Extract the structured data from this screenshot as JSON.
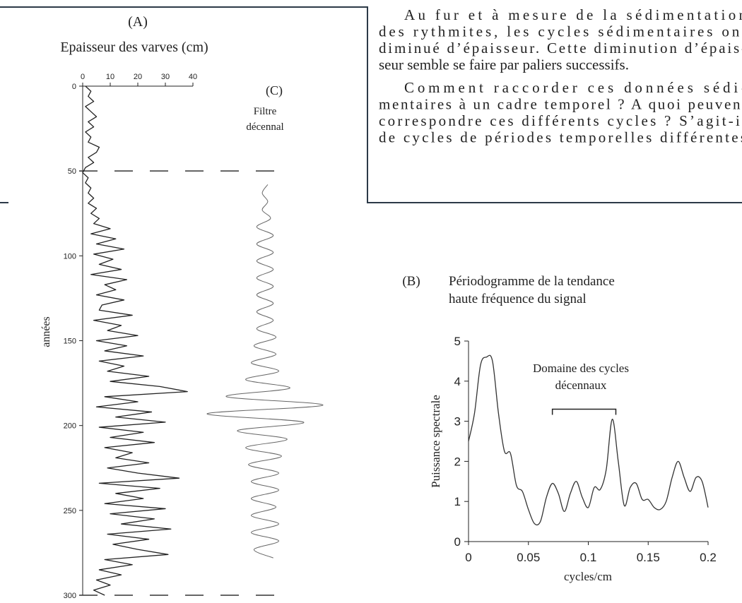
{
  "text": {
    "paragraphs": [
      [
        "Au fur et à mesure de la sédimentation",
        "des rythmites, les cycles sédimentaires ont",
        "diminué d’épaisseur. Cette diminution d’épais-",
        "seur semble se faire par paliers successifs."
      ],
      [
        "Comment raccorder ces données sédi-",
        "mentaires à un cadre temporel ? A quoi peuvent",
        "correspondre ces différents cycles ? S’agit-il",
        "de cycles de périodes temporelles différentes"
      ]
    ]
  },
  "chart_data": [
    {
      "type": "line",
      "orientation": "vertical",
      "title": "(A)",
      "subtitle": "Epaisseur des varves (cm)",
      "xlabel": "années",
      "xlim": [
        0,
        300
      ],
      "xticks": [
        0,
        50,
        100,
        150,
        200,
        250,
        300
      ],
      "ylim": [
        0,
        40
      ],
      "yticks": [
        0,
        10,
        20,
        30,
        40
      ],
      "reference_x": [
        50,
        300
      ],
      "color": "#222222",
      "x": [
        0,
        3,
        6,
        9,
        12,
        15,
        18,
        21,
        24,
        27,
        30,
        33,
        36,
        39,
        42,
        45,
        48,
        51,
        54,
        57,
        60,
        63,
        66,
        69,
        72,
        75,
        78,
        81,
        84,
        87,
        90,
        93,
        96,
        99,
        102,
        105,
        108,
        111,
        114,
        117,
        120,
        123,
        126,
        129,
        132,
        135,
        138,
        141,
        144,
        147,
        150,
        153,
        156,
        159,
        162,
        165,
        168,
        171,
        174,
        177,
        180,
        183,
        186,
        189,
        192,
        195,
        198,
        201,
        204,
        207,
        210,
        213,
        216,
        219,
        222,
        225,
        228,
        231,
        234,
        237,
        240,
        243,
        246,
        249,
        252,
        255,
        258,
        261,
        264,
        267,
        270,
        273,
        276,
        279,
        282,
        285,
        288,
        291,
        294,
        297,
        300
      ],
      "values": [
        1,
        3,
        2,
        4,
        1,
        3,
        5,
        2,
        4,
        1,
        3,
        2,
        6,
        5,
        2,
        4,
        1,
        0,
        2,
        1,
        3,
        2,
        4,
        2,
        5,
        3,
        6,
        4,
        10,
        3,
        12,
        5,
        15,
        4,
        11,
        6,
        14,
        3,
        16,
        8,
        12,
        5,
        15,
        7,
        6,
        18,
        4,
        14,
        9,
        20,
        5,
        16,
        8,
        22,
        6,
        15,
        9,
        24,
        10,
        28,
        38,
        8,
        20,
        5,
        25,
        12,
        30,
        6,
        22,
        10,
        26,
        8,
        18,
        12,
        24,
        9,
        20,
        35,
        6,
        28,
        12,
        22,
        8,
        30,
        10,
        26,
        14,
        32,
        9,
        24,
        11,
        20,
        31,
        8,
        18,
        6,
        14,
        5,
        10,
        4,
        8
      ]
    },
    {
      "type": "line",
      "orientation": "vertical",
      "title": "(C)",
      "subtitle": [
        "Filtre",
        "décennal"
      ],
      "color": "#666666",
      "x": [
        58,
        63,
        68,
        73,
        78,
        83,
        88,
        93,
        98,
        103,
        108,
        113,
        118,
        123,
        128,
        133,
        138,
        143,
        148,
        153,
        158,
        163,
        168,
        173,
        178,
        183,
        188,
        193,
        198,
        203,
        208,
        213,
        218,
        223,
        228,
        233,
        238,
        243,
        248,
        253,
        258,
        263,
        268,
        273,
        278
      ],
      "values": [
        1,
        -1,
        1,
        -1,
        2,
        -3,
        3,
        -3,
        3,
        -3,
        3,
        -3,
        3,
        -3,
        3,
        -3,
        3,
        -3,
        4,
        -4,
        4,
        -5,
        5,
        -7,
        9,
        -14,
        21,
        -21,
        14,
        -10,
        8,
        -7,
        6,
        -6,
        5,
        -5,
        5,
        -5,
        4,
        -5,
        5,
        -5,
        5,
        -4,
        3
      ]
    },
    {
      "type": "line",
      "label": "(B)",
      "title": [
        "Périodogramme de la tendance",
        "haute fréquence du signal"
      ],
      "xlabel": "cycles/cm",
      "ylabel": "Puissance spectrale",
      "color": "#333333",
      "xlim": [
        0,
        0.2
      ],
      "xticks": [
        0,
        0.05,
        0.1,
        0.15,
        0.2
      ],
      "ylim": [
        0,
        5
      ],
      "yticks": [
        0,
        1,
        2,
        3,
        4,
        5
      ],
      "annotation": {
        "text": [
          "Domaine des cycles",
          "décennaux"
        ],
        "x_range": [
          0.07,
          0.123
        ],
        "y": 3.3
      },
      "x": [
        0,
        0.005,
        0.01,
        0.015,
        0.02,
        0.025,
        0.03,
        0.035,
        0.04,
        0.045,
        0.05,
        0.055,
        0.06,
        0.065,
        0.07,
        0.075,
        0.08,
        0.085,
        0.09,
        0.095,
        0.1,
        0.105,
        0.11,
        0.115,
        0.12,
        0.125,
        0.13,
        0.135,
        0.14,
        0.145,
        0.15,
        0.155,
        0.16,
        0.165,
        0.17,
        0.175,
        0.18,
        0.185,
        0.19,
        0.195,
        0.2
      ],
      "values": [
        2.5,
        3.2,
        4.4,
        4.6,
        4.5,
        3.2,
        2.25,
        2.2,
        1.4,
        1.25,
        0.8,
        0.45,
        0.5,
        1.1,
        1.45,
        1.2,
        0.75,
        1.2,
        1.5,
        1.1,
        0.85,
        1.35,
        1.3,
        1.8,
        3.05,
        2.0,
        0.9,
        1.35,
        1.45,
        1.05,
        1.05,
        0.85,
        0.8,
        1.0,
        1.6,
        2.0,
        1.6,
        1.25,
        1.6,
        1.5,
        0.85
      ]
    }
  ]
}
